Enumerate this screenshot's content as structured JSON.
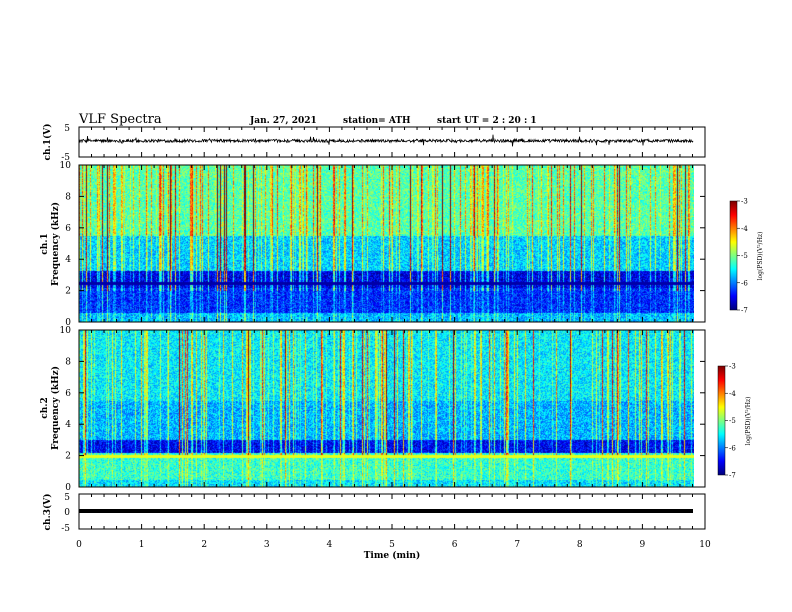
{
  "header": {
    "title": "VLF Spectra",
    "date": "Jan. 27, 2021",
    "station": "station= ATH",
    "start": "start  UT =   2 : 20 : 1"
  },
  "chart_data": [
    {
      "type": "line",
      "panel": "ch1-waveform",
      "ylabel": "ch.1(V)",
      "ylim": [
        -5,
        5
      ],
      "yticks": [
        "5",
        "-5"
      ],
      "xlim": [
        0,
        10
      ],
      "baseline": 0.4
    },
    {
      "type": "heatmap",
      "panel": "ch1-spectrogram",
      "ylabel_top": "ch.1",
      "ylabel_bottom": "Frequency (kHz)",
      "ylim": [
        0,
        10
      ],
      "yticks": [
        "0",
        "2",
        "4",
        "6",
        "8",
        "10"
      ],
      "xlim": [
        0,
        9.84
      ],
      "colorbar": {
        "label": "log(PSD)(V²/Hz)",
        "range": [
          -7,
          -3
        ],
        "ticks": [
          "-3",
          "-4",
          "-5",
          "-6",
          "-7"
        ]
      }
    },
    {
      "type": "heatmap",
      "panel": "ch2-spectrogram",
      "ylabel_top": "ch.2",
      "ylabel_bottom": "Frequency (kHz)",
      "ylim": [
        0,
        10
      ],
      "yticks": [
        "0",
        "2",
        "4",
        "6",
        "8",
        "10"
      ],
      "xlim": [
        0,
        9.84
      ],
      "colorbar": {
        "label": "log(PSD)(V²/Hz)",
        "range": [
          -7,
          -3
        ],
        "ticks": [
          "-3",
          "-4",
          "-5",
          "-6",
          "-7"
        ]
      }
    },
    {
      "type": "line",
      "panel": "ch3-waveform",
      "ylabel": "ch.3(V)",
      "ylim": [
        -5,
        5
      ],
      "yticks": [
        "5",
        "0",
        "-5"
      ],
      "xlim": [
        0,
        10
      ],
      "baseline": 0.0
    }
  ],
  "xaxis": {
    "label": "Time (min)",
    "ticks": [
      "0",
      "1",
      "2",
      "3",
      "4",
      "5",
      "6",
      "7",
      "8",
      "9",
      "10"
    ]
  }
}
